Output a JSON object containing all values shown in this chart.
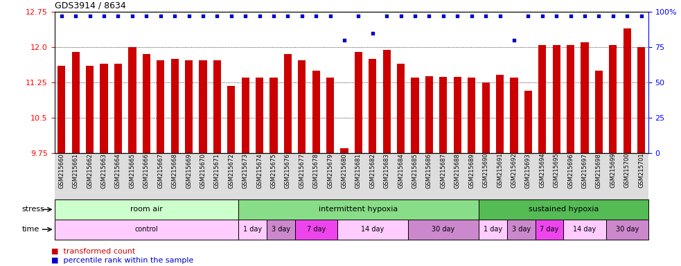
{
  "title": "GDS3914 / 8634",
  "samples": [
    "GSM215660",
    "GSM215661",
    "GSM215662",
    "GSM215663",
    "GSM215664",
    "GSM215665",
    "GSM215666",
    "GSM215667",
    "GSM215668",
    "GSM215669",
    "GSM215670",
    "GSM215671",
    "GSM215672",
    "GSM215673",
    "GSM215674",
    "GSM215675",
    "GSM215676",
    "GSM215677",
    "GSM215678",
    "GSM215679",
    "GSM215680",
    "GSM215681",
    "GSM215682",
    "GSM215683",
    "GSM215684",
    "GSM215685",
    "GSM215686",
    "GSM215687",
    "GSM215688",
    "GSM215689",
    "GSM215690",
    "GSM215691",
    "GSM215692",
    "GSM215693",
    "GSM215694",
    "GSM215695",
    "GSM215696",
    "GSM215697",
    "GSM215698",
    "GSM215699",
    "GSM215700",
    "GSM215701"
  ],
  "bar_values": [
    11.6,
    11.9,
    11.6,
    11.65,
    11.65,
    12.0,
    11.85,
    11.72,
    11.75,
    11.72,
    11.72,
    11.72,
    11.17,
    11.35,
    11.35,
    11.35,
    11.85,
    11.72,
    11.5,
    11.35,
    9.85,
    11.9,
    11.75,
    11.95,
    11.65,
    11.35,
    11.38,
    11.37,
    11.37,
    11.35,
    11.25,
    11.42,
    11.35,
    11.08,
    12.05,
    12.05,
    12.05,
    12.1,
    11.5,
    12.05,
    12.4,
    12.0
  ],
  "percentile_values": [
    97,
    97,
    97,
    97,
    97,
    97,
    97,
    97,
    97,
    97,
    97,
    97,
    97,
    97,
    97,
    97,
    97,
    97,
    97,
    97,
    80,
    97,
    85,
    97,
    97,
    97,
    97,
    97,
    97,
    97,
    97,
    97,
    80,
    97,
    97,
    97,
    97,
    97,
    97,
    97,
    97,
    97
  ],
  "bar_color": "#cc0000",
  "percentile_color": "#0000cc",
  "ylim_left": [
    9.75,
    12.75
  ],
  "ylim_right": [
    0,
    100
  ],
  "yticks_left": [
    9.75,
    10.5,
    11.25,
    12.0,
    12.75
  ],
  "yticks_right": [
    0,
    25,
    50,
    75,
    100
  ],
  "dotted_yticks": [
    10.5,
    11.25,
    12.0
  ],
  "stress_groups": [
    {
      "label": "room air",
      "start": 0,
      "end": 13,
      "color": "#ccffcc"
    },
    {
      "label": "intermittent hypoxia",
      "start": 13,
      "end": 30,
      "color": "#88dd88"
    },
    {
      "label": "sustained hypoxia",
      "start": 30,
      "end": 42,
      "color": "#55bb55"
    }
  ],
  "time_groups": [
    {
      "label": "control",
      "start": 0,
      "end": 13,
      "color": "#ffccff"
    },
    {
      "label": "1 day",
      "start": 13,
      "end": 15,
      "color": "#ffccff"
    },
    {
      "label": "3 day",
      "start": 15,
      "end": 17,
      "color": "#cc88cc"
    },
    {
      "label": "7 day",
      "start": 17,
      "end": 20,
      "color": "#ee44ee"
    },
    {
      "label": "14 day",
      "start": 20,
      "end": 25,
      "color": "#ffccff"
    },
    {
      "label": "30 day",
      "start": 25,
      "end": 30,
      "color": "#cc88cc"
    },
    {
      "label": "1 day",
      "start": 30,
      "end": 32,
      "color": "#ffccff"
    },
    {
      "label": "3 day",
      "start": 32,
      "end": 34,
      "color": "#cc88cc"
    },
    {
      "label": "7 day",
      "start": 34,
      "end": 36,
      "color": "#ee44ee"
    },
    {
      "label": "14 day",
      "start": 36,
      "end": 39,
      "color": "#ffccff"
    },
    {
      "label": "30 day",
      "start": 39,
      "end": 42,
      "color": "#cc88cc"
    }
  ],
  "xlabel_bg": "#dddddd",
  "legend_tc_color": "#cc0000",
  "legend_pr_color": "#0000cc"
}
